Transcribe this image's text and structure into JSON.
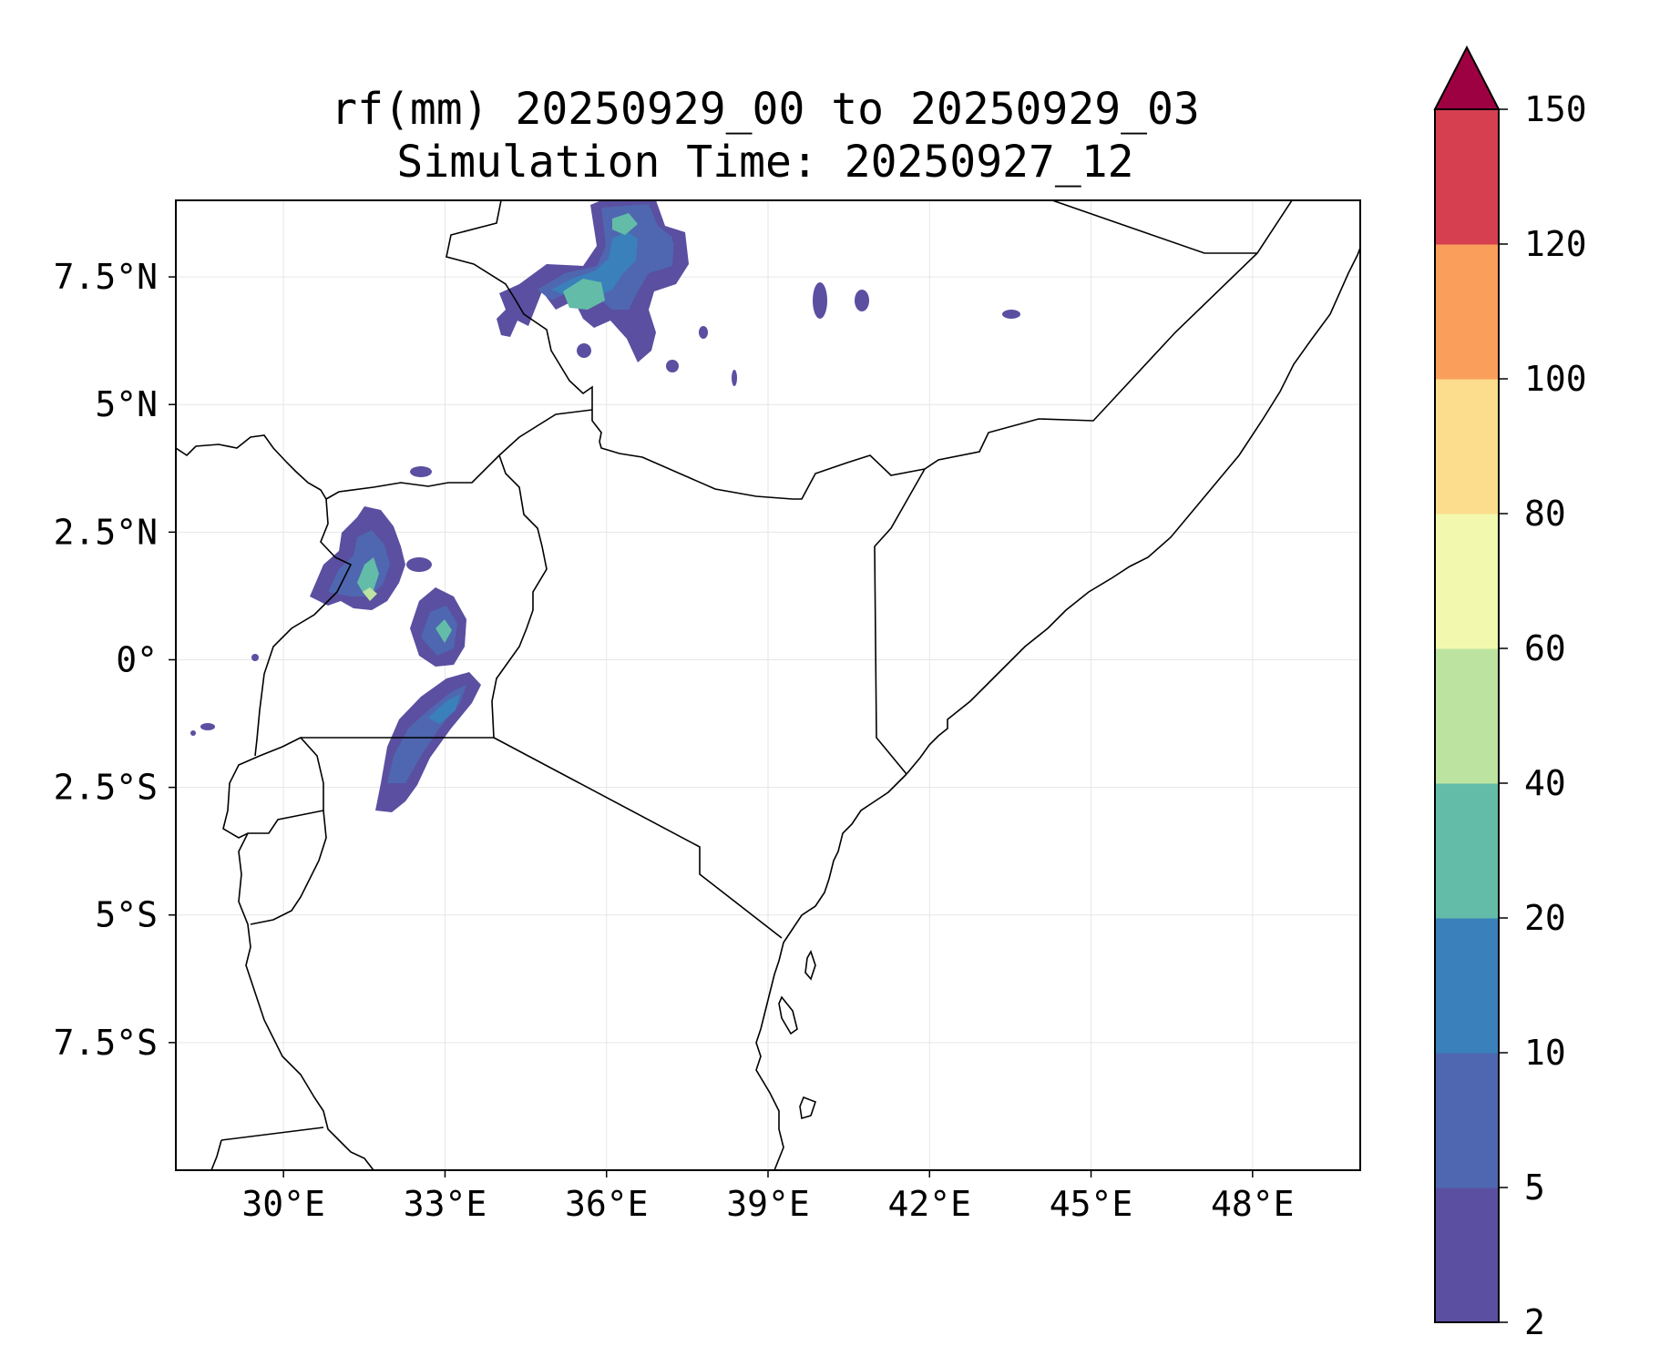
{
  "title": {
    "line1": "rf(mm) 20250929_00 to 20250929_03",
    "line2": "Simulation Time: 20250927_12"
  },
  "map": {
    "variable": "rf(mm)",
    "lon_range": [
      28.0,
      50.0
    ],
    "lat_range": [
      -10.0,
      9.0
    ],
    "lon_ticks": [
      {
        "value": 30,
        "label": "30°E"
      },
      {
        "value": 33,
        "label": "33°E"
      },
      {
        "value": 36,
        "label": "36°E"
      },
      {
        "value": 39,
        "label": "39°E"
      },
      {
        "value": 42,
        "label": "42°E"
      },
      {
        "value": 45,
        "label": "45°E"
      },
      {
        "value": 48,
        "label": "48°E"
      }
    ],
    "lat_ticks": [
      {
        "value": 7.5,
        "label": "7.5°N"
      },
      {
        "value": 5,
        "label": "5°N"
      },
      {
        "value": 2.5,
        "label": "2.5°N"
      },
      {
        "value": 0,
        "label": "0°"
      },
      {
        "value": -2.5,
        "label": "2.5°S"
      },
      {
        "value": -5,
        "label": "5°S"
      },
      {
        "value": -7.5,
        "label": "7.5°S"
      }
    ]
  },
  "colorbar": {
    "levels": [
      2,
      5,
      10,
      20,
      40,
      60,
      80,
      100,
      120,
      150
    ],
    "labels": [
      "2",
      "5",
      "10",
      "20",
      "40",
      "60",
      "80",
      "100",
      "120",
      "150"
    ],
    "colors": [
      "#5a4fa0",
      "#4f67b0",
      "#3a80bb",
      "#63bca8",
      "#bde3a0",
      "#f2f9ae",
      "#fbdd8d",
      "#fa9e5b",
      "#d53f4f"
    ],
    "extend_color": "#9e0142"
  }
}
